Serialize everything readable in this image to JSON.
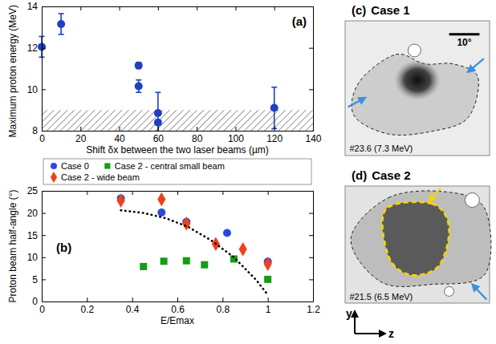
{
  "chart_data": [
    {
      "type": "scatter",
      "title": "(a)",
      "xlabel": "Shift δx between the two laser beams (µm)",
      "ylabel": "Maximum proton energy (MeV)",
      "xlim": [
        0,
        140
      ],
      "xticks": [
        0,
        20,
        40,
        60,
        80,
        100,
        120,
        140
      ],
      "ylim": [
        8,
        14
      ],
      "yticks": [
        8,
        10,
        12,
        14
      ],
      "x": [
        0,
        10,
        50,
        50,
        60,
        60,
        120
      ],
      "band": [
        8,
        9
      ],
      "series": [
        {
          "color": "#1f3fc4",
          "marker": "circle",
          "values": [
            12.05,
            13.15,
            11.15,
            10.15,
            8.85,
            8.4,
            9.1
          ],
          "errors": [
            0.5,
            0.5,
            0.15,
            0.3,
            1.0,
            0.1,
            1.0
          ]
        }
      ]
    },
    {
      "type": "scatter",
      "title": "(b)",
      "xlabel": "E/Emax",
      "ylabel": "Proton beam half-angle (°)",
      "xlim": [
        0,
        1.2
      ],
      "xticks": [
        0,
        0.2,
        0.4,
        0.6,
        0.8,
        1,
        1.2
      ],
      "ylim": [
        0,
        25
      ],
      "yticks": [
        0,
        5,
        10,
        15,
        20,
        25
      ],
      "legend": "top",
      "series": [
        {
          "name": "Case 0",
          "color": "#2a48e0",
          "marker": "circle",
          "x": [
            0.35,
            0.53,
            0.64,
            0.82,
            1.0
          ],
          "values": [
            23.3,
            20.1,
            18,
            15.5,
            9
          ]
        },
        {
          "name": "Case 2 - central small beam",
          "color": "#169c16",
          "marker": "square",
          "x": [
            0.45,
            0.54,
            0.64,
            0.72,
            0.85,
            1.0
          ],
          "values": [
            7.9,
            9.1,
            9.2,
            8.3,
            9.6,
            5
          ]
        },
        {
          "name": "Case 2 - wide beam",
          "color": "#f0401a",
          "marker": "diamond",
          "x": [
            0.35,
            0.53,
            0.64,
            0.77,
            0.89,
            1.0
          ],
          "values": [
            22.8,
            23.1,
            17.6,
            13,
            11.8,
            8.5
          ]
        },
        {
          "type": "line",
          "line_style": "dotted",
          "color": "#000000",
          "x": [
            0.35,
            0.45,
            0.55,
            0.65,
            0.75,
            0.85,
            0.95,
            1.0
          ],
          "values": [
            20.6,
            20.0,
            18.8,
            16.8,
            13.8,
            10.0,
            4.8,
            1.5
          ]
        }
      ]
    }
  ],
  "images": [
    {
      "label": "(c)",
      "title": "Case 1",
      "scale_label": "10°",
      "caption": "#23.6 (7.3 MeV)"
    },
    {
      "label": "(d)",
      "title": "Case 2",
      "caption": "#21.5 (6.5 MeV)"
    }
  ],
  "axes_glyph": {
    "vertical": "y",
    "horizontal": "z"
  }
}
